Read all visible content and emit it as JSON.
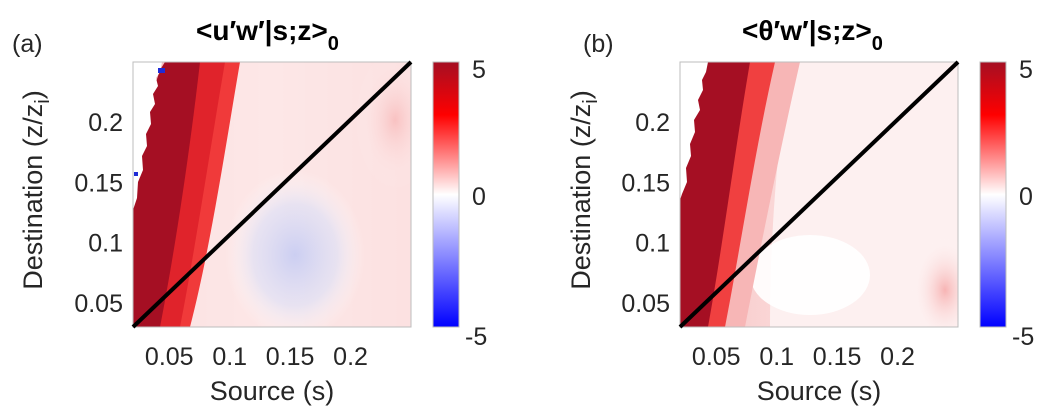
{
  "figure": {
    "panels": [
      {
        "panel_label": "(a)",
        "title_main": "<u′w′|s;z>",
        "title_sub": "0"
      },
      {
        "panel_label": "(b)",
        "title_main": "<θ′w′|s;z>",
        "title_sub": "0"
      }
    ]
  },
  "chart_data": [
    {
      "type": "heatmap",
      "panel_label": "(a)",
      "title": "<u′w′|s;z>0",
      "xlabel": "Source (s)",
      "ylabel": "Destination (z/z_i)",
      "ylabel_main": "Destination (z/z",
      "ylabel_sub": "i",
      "ylabel_close": ")",
      "xlim": [
        0.02,
        0.25
      ],
      "ylim": [
        0.03,
        0.25
      ],
      "xticks": [
        0.05,
        0.1,
        0.15,
        0.2
      ],
      "xtick_labels": [
        "0.05",
        "0.1",
        "0.15",
        "0.2"
      ],
      "yticks": [
        0.05,
        0.1,
        0.15,
        0.2
      ],
      "ytick_labels": [
        "0.05",
        "0.1",
        "0.15",
        "0.2"
      ],
      "diagonal_line": {
        "from": [
          0.02,
          0.03
        ],
        "to": [
          0.25,
          0.25
        ],
        "color": "#000000"
      },
      "colorbar": {
        "min": -5,
        "max": 5,
        "ticks": [
          "5",
          "0",
          "-5"
        ],
        "colors": [
          "#0000ff",
          "#ffffff",
          "#ff0000",
          "#a50f23"
        ]
      }
    },
    {
      "type": "heatmap",
      "panel_label": "(b)",
      "title": "<θ′w′|s;z>0",
      "xlabel": "Source (s)",
      "ylabel": "Destination (z/z_i)",
      "ylabel_main": "Destination (z/z",
      "ylabel_sub": "i",
      "ylabel_close": ")",
      "xlim": [
        0.02,
        0.25
      ],
      "ylim": [
        0.03,
        0.25
      ],
      "xticks": [
        0.05,
        0.1,
        0.15,
        0.2
      ],
      "xtick_labels": [
        "0.05",
        "0.1",
        "0.15",
        "0.2"
      ],
      "yticks": [
        0.05,
        0.1,
        0.15,
        0.2
      ],
      "ytick_labels": [
        "0.05",
        "0.1",
        "0.15",
        "0.2"
      ],
      "diagonal_line": {
        "from": [
          0.02,
          0.03
        ],
        "to": [
          0.25,
          0.25
        ],
        "color": "#000000"
      },
      "colorbar": {
        "min": -5,
        "max": 5,
        "ticks": [
          "5",
          "0",
          "-5"
        ],
        "colors": [
          "#0000ff",
          "#ffffff",
          "#ff0000",
          "#a50f23"
        ]
      }
    }
  ]
}
